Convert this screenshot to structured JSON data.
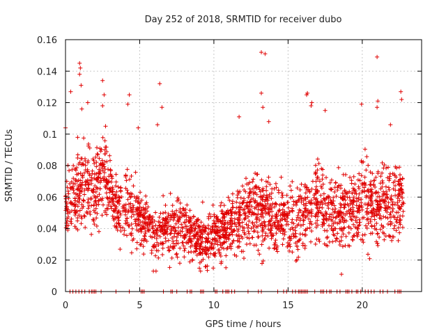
{
  "chart_data": {
    "type": "scatter",
    "title": "Day 252 of 2018, SRMTID for receiver dubo",
    "xlabel": "GPS time / hours",
    "ylabel": "SRMTID / TECUs",
    "xlim": [
      0,
      24
    ],
    "ylim": [
      0,
      0.16
    ],
    "xticks": [
      0,
      5,
      10,
      15,
      20
    ],
    "yticks": [
      0,
      0.02,
      0.04,
      0.06,
      0.08,
      0.1,
      0.12,
      0.14,
      0.16
    ],
    "xtick_labels": [
      "0",
      "5",
      "10",
      "15",
      "20"
    ],
    "ytick_labels": [
      "0",
      "0.02",
      "0.04",
      "0.06",
      "0.08",
      "0.1",
      "0.12",
      "0.14",
      "0.16"
    ],
    "grid": true,
    "marker": "+",
    "color": "#e00000",
    "series": [
      {
        "name": "SRMTID",
        "profile_hours": [
          0,
          0.5,
          1,
          1.5,
          2,
          2.5,
          3,
          3.5,
          4,
          5,
          6,
          7,
          8,
          9,
          10,
          11,
          12,
          13,
          14,
          15,
          16,
          17,
          18,
          19,
          20,
          21,
          22,
          22.8
        ],
        "profile_center": [
          0.058,
          0.06,
          0.065,
          0.068,
          0.06,
          0.075,
          0.065,
          0.05,
          0.055,
          0.05,
          0.035,
          0.04,
          0.04,
          0.032,
          0.035,
          0.04,
          0.048,
          0.052,
          0.048,
          0.045,
          0.048,
          0.058,
          0.05,
          0.05,
          0.056,
          0.055,
          0.055,
          0.06
        ],
        "profile_spread": [
          0.02,
          0.022,
          0.025,
          0.025,
          0.022,
          0.028,
          0.022,
          0.018,
          0.02,
          0.02,
          0.015,
          0.017,
          0.017,
          0.015,
          0.016,
          0.018,
          0.02,
          0.022,
          0.02,
          0.02,
          0.022,
          0.024,
          0.022,
          0.022,
          0.024,
          0.024,
          0.022,
          0.02
        ],
        "outliers": [
          [
            0.0,
            0.104
          ],
          [
            0.35,
            0.127
          ],
          [
            0.95,
            0.145
          ],
          [
            1.0,
            0.142
          ],
          [
            0.95,
            0.138
          ],
          [
            1.05,
            0.131
          ],
          [
            1.1,
            0.116
          ],
          [
            1.5,
            0.12
          ],
          [
            2.5,
            0.134
          ],
          [
            2.6,
            0.125
          ],
          [
            2.5,
            0.118
          ],
          [
            2.7,
            0.105
          ],
          [
            4.3,
            0.125
          ],
          [
            4.2,
            0.119
          ],
          [
            6.35,
            0.132
          ],
          [
            6.5,
            0.117
          ],
          [
            6.2,
            0.106
          ],
          [
            4.9,
            0.104
          ],
          [
            11.7,
            0.111
          ],
          [
            13.2,
            0.152
          ],
          [
            13.45,
            0.151
          ],
          [
            13.2,
            0.126
          ],
          [
            13.3,
            0.117
          ],
          [
            13.7,
            0.108
          ],
          [
            16.3,
            0.126
          ],
          [
            16.25,
            0.125
          ],
          [
            16.6,
            0.12
          ],
          [
            16.55,
            0.118
          ],
          [
            17.5,
            0.115
          ],
          [
            19.95,
            0.119
          ],
          [
            21.0,
            0.149
          ],
          [
            21.05,
            0.121
          ],
          [
            21.0,
            0.117
          ],
          [
            22.6,
            0.127
          ],
          [
            22.65,
            0.122
          ],
          [
            21.9,
            0.106
          ],
          [
            18.6,
            0.011
          ],
          [
            9.1,
            0.013
          ],
          [
            6.1,
            0.013
          ]
        ],
        "zero_hours": [
          0.3,
          0.5,
          0.7,
          0.9,
          1.1,
          1.3,
          1.6,
          1.75,
          1.85,
          1.95,
          2.05,
          2.4,
          3.4,
          4.3,
          5.1,
          5.2,
          5.3,
          6.6,
          7.1,
          7.2,
          7.5,
          8.2,
          8.4,
          8.5,
          9.1,
          9.2,
          9.3,
          10.1,
          10.2,
          10.6,
          10.8,
          10.9,
          11.0,
          11.2,
          11.4,
          12.3,
          13.0,
          13.2,
          14.3,
          14.7,
          14.9,
          15.3,
          15.5,
          15.7,
          15.8,
          15.9,
          16.0,
          16.1,
          16.2,
          16.3,
          16.8,
          17.2,
          17.3,
          17.4,
          17.6,
          17.8,
          17.9,
          18.3,
          18.5,
          18.9,
          19.0,
          19.1,
          19.3,
          19.6,
          19.7,
          19.9,
          20.2,
          20.4,
          20.6,
          20.8,
          21.2,
          21.4,
          21.7,
          22.2,
          22.4,
          22.5,
          22.6
        ]
      }
    ]
  }
}
